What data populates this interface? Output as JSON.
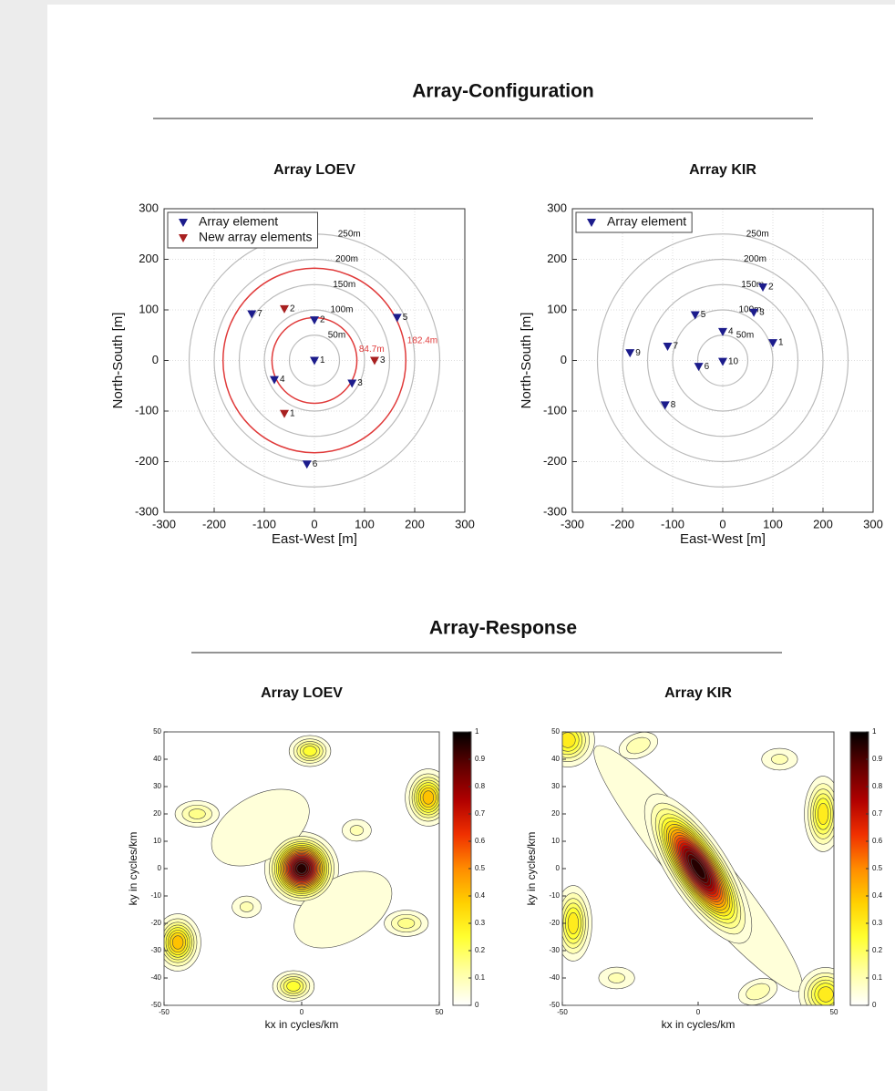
{
  "sections": [
    {
      "title": "Array-Configuration"
    },
    {
      "title": "Array-Response"
    }
  ],
  "chart_data": [
    {
      "type": "scatter",
      "title": "Array LOEV",
      "xlabel": "East-West [m]",
      "ylabel": "North-South [m]",
      "xlim": [
        -300,
        300
      ],
      "ylim": [
        -300,
        300
      ],
      "xticks": [
        -300,
        -200,
        -100,
        0,
        100,
        200,
        300
      ],
      "yticks": [
        -300,
        -200,
        -100,
        0,
        100,
        200,
        300
      ],
      "grid": true,
      "legend": "upper left",
      "rings": [
        {
          "radius": 50,
          "label": "50m"
        },
        {
          "radius": 100,
          "label": "100m"
        },
        {
          "radius": 150,
          "label": "150m"
        },
        {
          "radius": 200,
          "label": "200m"
        },
        {
          "radius": 250,
          "label": "250m"
        }
      ],
      "highlight_rings": {
        "color": "#e03a3a",
        "rings": [
          {
            "radius": 84.7,
            "label": "84.7m"
          },
          {
            "radius": 182.4,
            "label": "182.4m"
          }
        ]
      },
      "series": [
        {
          "name": "Array element",
          "color": "#1c1c8c",
          "x": [
            0,
            0,
            75,
            -80,
            165,
            -15,
            -125
          ],
          "y": [
            0,
            80,
            -45,
            -38,
            85,
            -205,
            92
          ],
          "labels": [
            "1",
            "2",
            "3",
            "4",
            "5",
            "6",
            "7"
          ]
        },
        {
          "name": "New array elements",
          "color": "#a82020",
          "x": [
            -60,
            -60,
            120
          ],
          "y": [
            -105,
            102,
            0
          ],
          "labels": [
            "1",
            "2",
            "3"
          ]
        }
      ]
    },
    {
      "type": "scatter",
      "title": "Array KIR",
      "xlabel": "East-West [m]",
      "ylabel": "North-South [m]",
      "xlim": [
        -300,
        300
      ],
      "ylim": [
        -300,
        300
      ],
      "xticks": [
        -300,
        -200,
        -100,
        0,
        100,
        200,
        300
      ],
      "yticks": [
        -300,
        -200,
        -100,
        0,
        100,
        200,
        300
      ],
      "grid": true,
      "legend": "upper left",
      "rings": [
        {
          "radius": 50,
          "label": "50m"
        },
        {
          "radius": 100,
          "label": "100m"
        },
        {
          "radius": 150,
          "label": "150m"
        },
        {
          "radius": 200,
          "label": "200m"
        },
        {
          "radius": 250,
          "label": "250m"
        }
      ],
      "series": [
        {
          "name": "Array element",
          "color": "#1c1c8c",
          "x": [
            100,
            80,
            62,
            0,
            -55,
            -48,
            -110,
            -115,
            -185,
            0
          ],
          "y": [
            35,
            145,
            95,
            57,
            90,
            -12,
            28,
            -88,
            15,
            -2
          ],
          "labels": [
            "1",
            "2",
            "3",
            "4",
            "5",
            "6",
            "7",
            "8",
            "9",
            "10"
          ]
        }
      ]
    },
    {
      "type": "contour",
      "title": "Array LOEV",
      "xlabel": "kx in cycles/km",
      "ylabel": "ky in cycles/km",
      "xlim": [
        -50,
        50
      ],
      "ylim": [
        -50,
        50
      ],
      "xticks": [
        -50,
        0,
        50
      ],
      "yticks": [
        -50,
        -40,
        -30,
        -20,
        -10,
        0,
        10,
        20,
        30,
        40,
        50
      ],
      "clim": [
        0,
        1
      ],
      "cticks": [
        0,
        0.1,
        0.2,
        0.3,
        0.4,
        0.5,
        0.6,
        0.7,
        0.8,
        0.9,
        1
      ],
      "colormap": [
        "#ffffff",
        "#ffffa0",
        "#ffff30",
        "#ffd000",
        "#ff8c00",
        "#f03000",
        "#b00000",
        "#600000",
        "#000000"
      ],
      "contour_step": 0.05,
      "peaks": [
        {
          "x": 0,
          "y": 0,
          "value": 1,
          "width": 5.5,
          "height": 5.5,
          "angle": 0
        },
        {
          "x": -15,
          "y": 15,
          "value": 0.08,
          "width": 20,
          "height": 12,
          "angle": -30
        },
        {
          "x": 15,
          "y": -15,
          "value": 0.08,
          "width": 20,
          "height": 12,
          "angle": -30
        },
        {
          "x": 46,
          "y": 26,
          "value": 0.45,
          "width": 4,
          "height": 5,
          "angle": 0
        },
        {
          "x": -45,
          "y": -27,
          "value": 0.45,
          "width": 4,
          "height": 5,
          "angle": 0
        },
        {
          "x": 3,
          "y": 43,
          "value": 0.3,
          "width": 4,
          "height": 3,
          "angle": 0
        },
        {
          "x": -3,
          "y": -43,
          "value": 0.3,
          "width": 4,
          "height": 3,
          "angle": 0
        },
        {
          "x": -38,
          "y": 20,
          "value": 0.18,
          "width": 5,
          "height": 3,
          "angle": 0
        },
        {
          "x": 38,
          "y": -20,
          "value": 0.18,
          "width": 5,
          "height": 3,
          "angle": 0
        },
        {
          "x": -20,
          "y": -14,
          "value": 0.12,
          "width": 4,
          "height": 3,
          "angle": 0
        },
        {
          "x": 20,
          "y": 14,
          "value": 0.12,
          "width": 4,
          "height": 3,
          "angle": 0
        }
      ]
    },
    {
      "type": "contour",
      "title": "Array KIR",
      "xlabel": "kx in cycles/km",
      "ylabel": "ky in cycles/km",
      "xlim": [
        -50,
        50
      ],
      "ylim": [
        -50,
        50
      ],
      "xticks": [
        -50,
        0,
        50
      ],
      "yticks": [
        -50,
        -40,
        -30,
        -20,
        -10,
        0,
        10,
        20,
        30,
        40,
        50
      ],
      "clim": [
        0,
        1
      ],
      "cticks": [
        0,
        0.1,
        0.2,
        0.3,
        0.4,
        0.5,
        0.6,
        0.7,
        0.8,
        0.9,
        1
      ],
      "colormap": [
        "#ffffff",
        "#ffffa0",
        "#ffff30",
        "#ffd000",
        "#ff8c00",
        "#f03000",
        "#b00000",
        "#600000",
        "#000000"
      ],
      "contour_step": 0.05,
      "peaks": [
        {
          "x": 0,
          "y": 0,
          "value": 0.08,
          "width": 10,
          "height": 60,
          "angle": -40
        },
        {
          "x": 0,
          "y": 0,
          "value": 1,
          "width": 4.5,
          "height": 13,
          "angle": -33
        },
        {
          "x": -46,
          "y": -20,
          "value": 0.35,
          "width": 3.5,
          "height": 7,
          "angle": 0
        },
        {
          "x": 46,
          "y": 20,
          "value": 0.35,
          "width": 3.5,
          "height": 7,
          "angle": 0
        },
        {
          "x": -48,
          "y": 47,
          "value": 0.35,
          "width": 5,
          "height": 5,
          "angle": -40
        },
        {
          "x": 47,
          "y": -46,
          "value": 0.35,
          "width": 5,
          "height": 5,
          "angle": -40
        },
        {
          "x": -22,
          "y": 45,
          "value": 0.15,
          "width": 5,
          "height": 3,
          "angle": -20
        },
        {
          "x": 22,
          "y": -45,
          "value": 0.15,
          "width": 5,
          "height": 3,
          "angle": -20
        },
        {
          "x": -30,
          "y": -40,
          "value": 0.12,
          "width": 5,
          "height": 3,
          "angle": 0
        },
        {
          "x": 30,
          "y": 40,
          "value": 0.12,
          "width": 5,
          "height": 3,
          "angle": 0
        }
      ]
    }
  ]
}
